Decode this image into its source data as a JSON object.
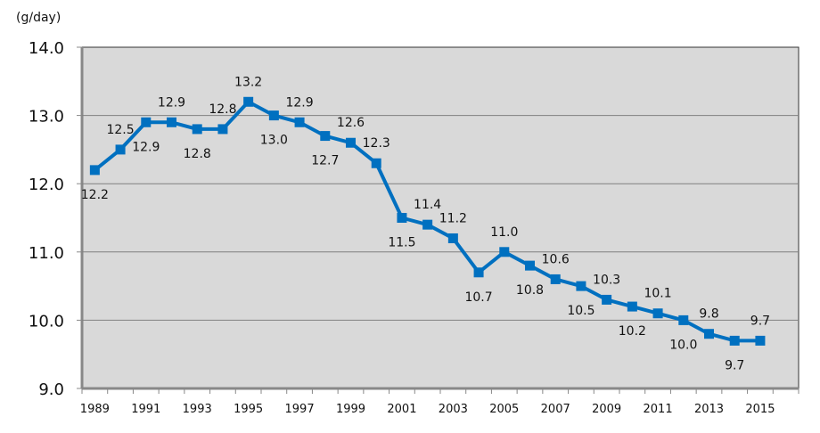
{
  "chart_data": {
    "type": "line",
    "title": "",
    "unit_label": "(g/day)",
    "xlabel": "",
    "ylabel": "",
    "ylim": [
      9.0,
      14.0
    ],
    "y_ticks": [
      "9.0",
      "10.0",
      "11.0",
      "12.0",
      "13.0",
      "14.0"
    ],
    "grid": true,
    "legend": "none",
    "x": [
      1989,
      1990,
      1991,
      1992,
      1993,
      1994,
      1995,
      1996,
      1997,
      1998,
      1999,
      2000,
      2001,
      2002,
      2003,
      2004,
      2005,
      2006,
      2007,
      2008,
      2009,
      2010,
      2011,
      2012,
      2013,
      2014,
      2015
    ],
    "x_tick_labels": [
      "1989",
      "1991",
      "1993",
      "1995",
      "1997",
      "1999",
      "2001",
      "2003",
      "2005",
      "2007",
      "2009",
      "2011",
      "2013",
      "2015"
    ],
    "values": [
      12.2,
      12.5,
      12.9,
      12.9,
      12.8,
      12.8,
      13.2,
      13.0,
      12.9,
      12.7,
      12.6,
      12.3,
      11.5,
      11.4,
      11.2,
      10.7,
      11.0,
      10.8,
      10.6,
      10.5,
      10.3,
      10.2,
      10.1,
      10.0,
      9.8,
      9.7,
      9.7
    ],
    "data_labels": [
      "12.2",
      "12.5",
      "12.9",
      "12.9",
      "12.8",
      "12.8",
      "13.2",
      "13.0",
      "12.9",
      "12.7",
      "12.6",
      "12.3",
      "11.5",
      "11.4",
      "11.2",
      "10.7",
      "11.0",
      "10.8",
      "10.6",
      "10.5",
      "10.3",
      "10.2",
      "10.1",
      "10.0",
      "9.8",
      "9.7",
      "9.7"
    ],
    "label_position": [
      "below",
      "above",
      "below",
      "above",
      "below",
      "above",
      "above",
      "below",
      "above",
      "below",
      "above",
      "above",
      "below",
      "above",
      "above",
      "below",
      "above",
      "below",
      "above",
      "below",
      "above",
      "below",
      "above",
      "below",
      "above",
      "below",
      "above"
    ],
    "colors": {
      "series": "#0070C0",
      "plot_background": "#D9D9D9",
      "gridline": "#808080"
    }
  }
}
